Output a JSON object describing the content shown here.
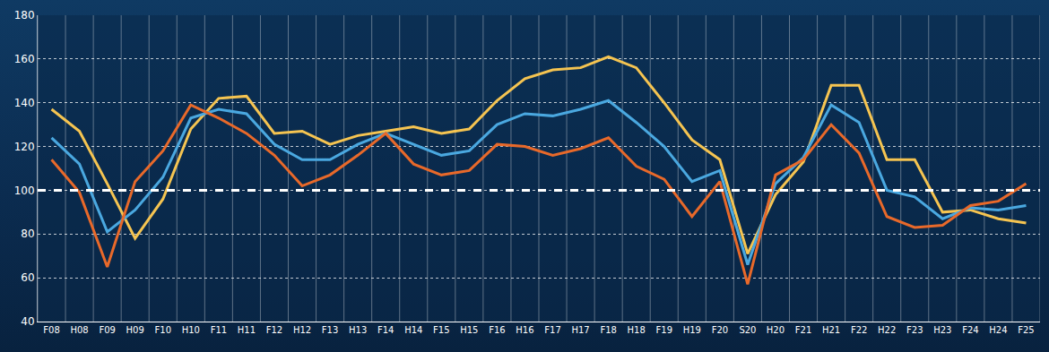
{
  "chart_data": {
    "type": "line",
    "categories": [
      "F08",
      "H08",
      "F09",
      "H09",
      "F10",
      "H10",
      "F11",
      "H11",
      "F12",
      "H12",
      "F13",
      "H13",
      "F14",
      "H14",
      "F15",
      "H15",
      "F16",
      "H16",
      "F17",
      "H17",
      "F18",
      "H18",
      "F19",
      "H19",
      "F20",
      "S20",
      "H20",
      "F21",
      "H21",
      "F22",
      "H22",
      "F23",
      "H23",
      "F24",
      "H24",
      "F25"
    ],
    "series": [
      {
        "color": "#f5c451",
        "values": [
          137,
          127,
          103,
          78,
          96,
          128,
          142,
          143,
          126,
          127,
          121,
          125,
          127,
          129,
          126,
          128,
          141,
          151,
          155,
          156,
          161,
          156,
          140,
          123,
          114,
          71,
          98,
          113,
          148,
          148,
          114,
          114,
          90,
          91,
          87,
          85
        ]
      },
      {
        "color": "#4aa8e0",
        "values": [
          124,
          112,
          81,
          91,
          106,
          133,
          137,
          135,
          121,
          114,
          114,
          121,
          126,
          121,
          116,
          118,
          130,
          135,
          134,
          137,
          141,
          131,
          120,
          104,
          109,
          66,
          103,
          115,
          139,
          131,
          100,
          97,
          87,
          92,
          91,
          93
        ]
      },
      {
        "color": "#e8692a",
        "values": [
          114,
          99,
          65,
          104,
          118,
          139,
          133,
          126,
          116,
          102,
          107,
          116,
          126,
          112,
          107,
          109,
          121,
          120,
          116,
          119,
          124,
          111,
          105,
          88,
          104,
          57,
          107,
          114,
          130,
          117,
          88,
          83,
          84,
          93,
          95,
          103
        ]
      }
    ],
    "ylim": [
      40,
      180
    ],
    "yticks": [
      40,
      60,
      80,
      100,
      120,
      140,
      160,
      180
    ],
    "reference_line": 100,
    "grid": true
  }
}
